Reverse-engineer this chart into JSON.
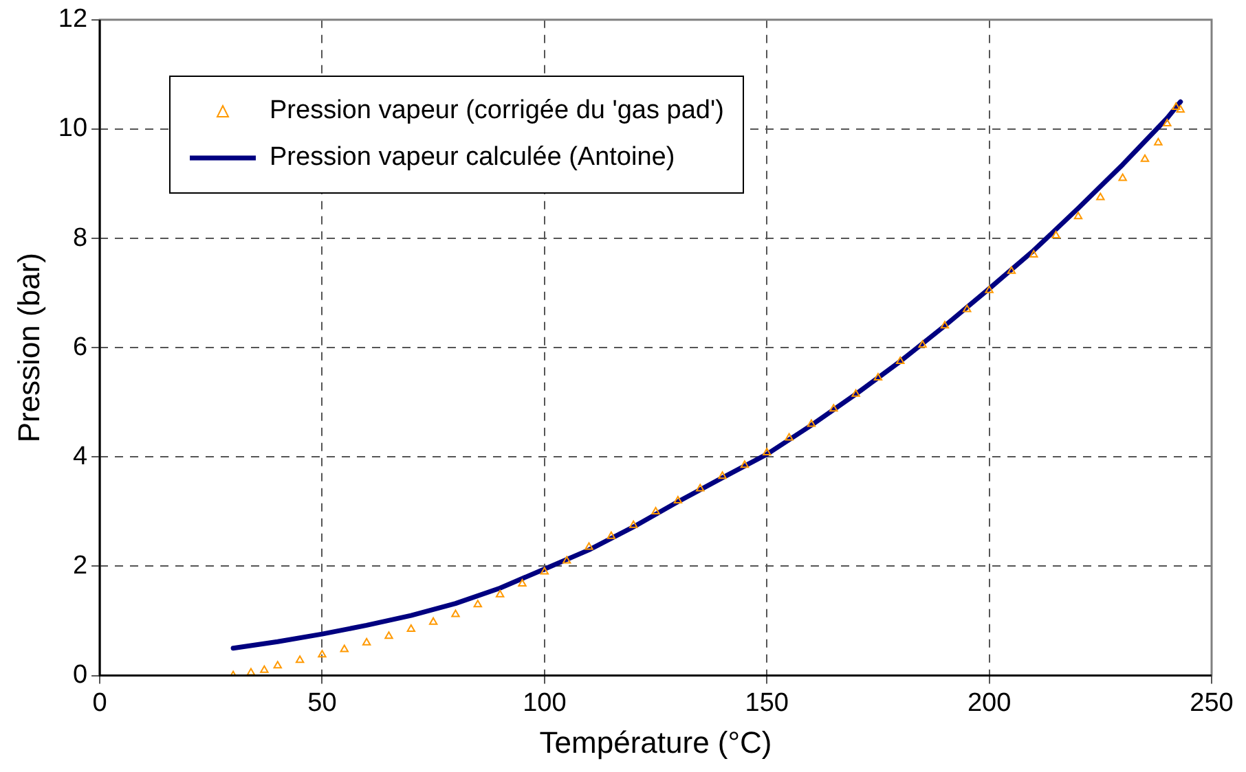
{
  "chart_data": {
    "type": "scatter",
    "xlabel": "Température (°C)",
    "ylabel": "Pression (bar)",
    "xlim": [
      0,
      250
    ],
    "xticks": [
      0,
      50,
      100,
      150,
      200,
      250
    ],
    "ylim": [
      0,
      12
    ],
    "yticks": [
      0,
      2,
      4,
      6,
      8,
      10,
      12
    ],
    "grid": true,
    "legend": "top left",
    "series": [
      {
        "name": "Pression vapeur (corrigée du 'gas pad')",
        "type": "scatter",
        "marker": "triangle",
        "color": "#ff9900",
        "x": [
          30,
          34,
          37,
          40,
          45,
          50,
          55,
          60,
          65,
          70,
          75,
          80,
          85,
          90,
          95,
          100,
          105,
          110,
          115,
          120,
          125,
          130,
          135,
          140,
          145,
          150,
          155,
          160,
          165,
          170,
          175,
          180,
          185,
          190,
          195,
          200,
          205,
          210,
          215,
          220,
          225,
          230,
          235,
          238,
          240,
          242,
          243
        ],
        "values": [
          0.0,
          0.05,
          0.1,
          0.18,
          0.28,
          0.38,
          0.48,
          0.6,
          0.72,
          0.85,
          0.98,
          1.12,
          1.3,
          1.48,
          1.68,
          1.9,
          2.1,
          2.35,
          2.55,
          2.75,
          3.0,
          3.2,
          3.42,
          3.65,
          3.85,
          4.08,
          4.35,
          4.6,
          4.88,
          5.15,
          5.45,
          5.75,
          6.05,
          6.4,
          6.7,
          7.05,
          7.4,
          7.7,
          8.05,
          8.4,
          8.75,
          9.1,
          9.45,
          9.75,
          10.1,
          10.4,
          10.35
        ]
      },
      {
        "name": "Pression vapeur calculée (Antoine)",
        "type": "line",
        "marker": "none",
        "color": "#000080",
        "x": [
          30,
          40,
          50,
          60,
          70,
          80,
          90,
          100,
          110,
          120,
          130,
          140,
          150,
          160,
          170,
          180,
          190,
          200,
          210,
          220,
          230,
          240,
          243
        ],
        "values": [
          0.5,
          0.62,
          0.76,
          0.92,
          1.1,
          1.32,
          1.6,
          1.95,
          2.3,
          2.72,
          3.18,
          3.62,
          4.05,
          4.58,
          5.15,
          5.75,
          6.4,
          7.08,
          7.78,
          8.55,
          9.35,
          10.2,
          10.5
        ]
      }
    ]
  }
}
